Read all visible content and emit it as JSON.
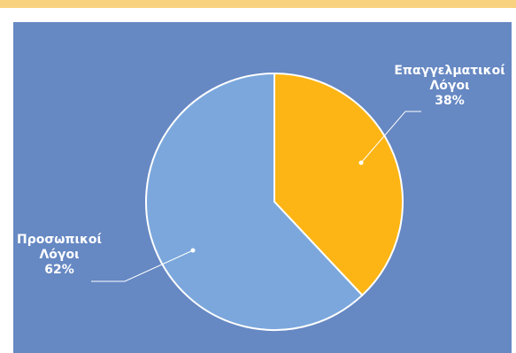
{
  "colors": {
    "panel_bg": "#6688c3",
    "top_strip": "#f9d27f",
    "slice_professional": "#fdb515",
    "slice_personal": "#7ba7dc",
    "stroke": "#ffffff"
  },
  "chart_data": {
    "type": "pie",
    "title": "",
    "start_angle_deg": 0,
    "direction": "clockwise",
    "legend": "none",
    "slices": [
      {
        "label_lines": [
          "Επαγγελματικοί",
          "Λόγοι"
        ],
        "value": 38,
        "value_label": "38%",
        "color": "#fdb515"
      },
      {
        "label_lines": [
          "Προσωπικοί",
          "Λόγοι"
        ],
        "value": 62,
        "value_label": "62%",
        "color": "#7ba7dc"
      }
    ]
  }
}
